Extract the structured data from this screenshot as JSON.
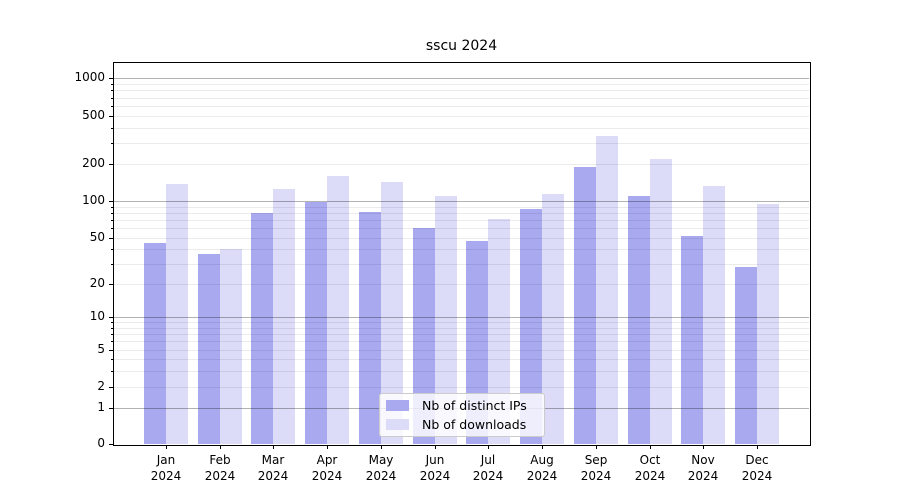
{
  "chart_data": {
    "type": "bar",
    "title": "sscu 2024",
    "categories": [
      "Jan 2024",
      "Feb 2024",
      "Mar 2024",
      "Apr 2024",
      "May 2024",
      "Jun 2024",
      "Jul 2024",
      "Aug 2024",
      "Sep 2024",
      "Oct 2024",
      "Nov 2024",
      "Dec 2024"
    ],
    "x_tick_month_labels": [
      "Jan",
      "Feb",
      "Mar",
      "Apr",
      "May",
      "Jun",
      "Jul",
      "Aug",
      "Sep",
      "Oct",
      "Nov",
      "Dec"
    ],
    "x_tick_year_label": "2024",
    "series": [
      {
        "name": "Nb of distinct IPs",
        "color": "#a9a9f0",
        "values": [
          45,
          36,
          80,
          99,
          82,
          60,
          47,
          86,
          190,
          110,
          52,
          28
        ]
      },
      {
        "name": "Nb of downloads",
        "color": "#dcdcf8",
        "values": [
          137,
          40,
          126,
          160,
          142,
          110,
          72,
          113,
          340,
          222,
          132,
          94
        ]
      }
    ],
    "ylabel": "",
    "xlabel": "",
    "y_axis": {
      "scale": "symlog",
      "tick_values": [
        0,
        1,
        2,
        5,
        10,
        20,
        50,
        100,
        200,
        500,
        1000
      ],
      "tick_labels": [
        "0",
        "1",
        "2",
        "5",
        "10",
        "20",
        "50",
        "100",
        "200",
        "500",
        "1000"
      ]
    },
    "grid": true,
    "legend_position": "lower center"
  },
  "colors": {
    "bar_distinct_ips": "#a9a9f0",
    "bar_downloads": "#dcdcf8",
    "grid_major": "#b3b3b3",
    "grid_minor": "#ebebeb",
    "axis": "#000000",
    "legend_border": "#cccccc"
  }
}
